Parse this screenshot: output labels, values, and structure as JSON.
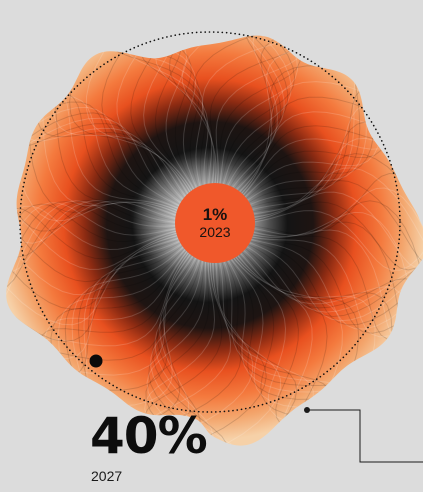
{
  "center_stat": {
    "value": "1%",
    "year": "2023"
  },
  "outer_stat": {
    "value": "40%",
    "year": "2027"
  },
  "colors": {
    "background": "#dcdcdc",
    "accent_orange": "#f0582b",
    "ink": "#0d0d0d",
    "cream": "#f2c89a"
  }
}
